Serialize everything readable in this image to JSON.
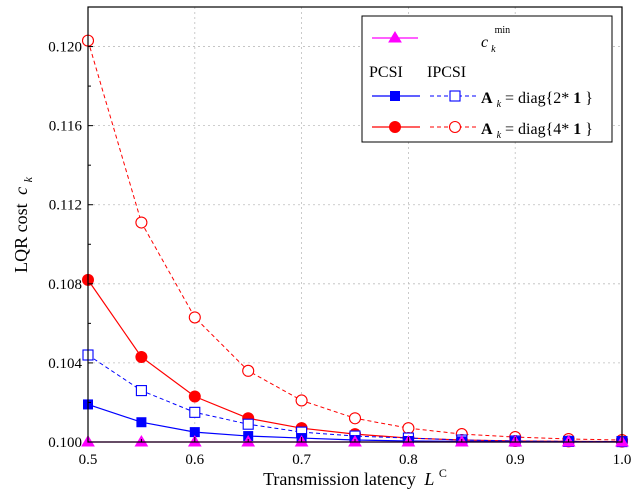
{
  "chart_data": {
    "type": "line",
    "title": "",
    "xlabel": "Transmission latency",
    "xlabel_symbol": "L",
    "xlabel_symbol_sup": "C",
    "ylabel": "LQR cost",
    "ylabel_symbol": "c",
    "ylabel_symbol_sub": "k",
    "xlim": [
      0.5,
      1.0
    ],
    "ylim": [
      0.1,
      0.122
    ],
    "x_ticks": [
      "0.5",
      "0.6",
      "0.7",
      "0.8",
      "0.9",
      "1.0"
    ],
    "y_ticks": [
      "0.100",
      "0.104",
      "0.108",
      "0.112",
      "0.116",
      "0.120"
    ],
    "grid": true,
    "legend_placement": "top-right",
    "legend": {
      "min_symbol": "c",
      "min_sub": "k",
      "min_sup": "min",
      "col_perfect": "PCSI",
      "col_imperfect": "IPCSI",
      "row1_A": "A",
      "row1_sub": "k",
      "row1_eq": " = diag{2*",
      "row1_one": "1",
      "row1_close": "}",
      "row2_A": "A",
      "row2_sub": "k",
      "row2_eq": " = diag{4*",
      "row2_one": "1",
      "row2_close": "}"
    },
    "x": [
      0.5,
      0.55,
      0.6,
      0.65,
      0.7,
      0.75,
      0.8,
      0.85,
      0.9,
      0.95,
      1.0
    ],
    "series": [
      {
        "key": "ipcsi_4",
        "color": "#ff0000",
        "marker": "circle-open",
        "dashed": true,
        "values": [
          0.1203,
          0.1111,
          0.1063,
          0.1036,
          0.1021,
          0.1012,
          0.1007,
          0.1004,
          0.10025,
          0.10015,
          0.1001
        ]
      },
      {
        "key": "pcsi_4",
        "color": "#ff0000",
        "marker": "circle-filled",
        "dashed": false,
        "values": [
          0.1082,
          0.1043,
          0.1023,
          0.1012,
          0.1007,
          0.1004,
          0.1002,
          0.1001,
          0.10005,
          0.10003,
          0.10002
        ]
      },
      {
        "key": "ipcsi_2",
        "color": "#0000ff",
        "marker": "square-open",
        "dashed": true,
        "values": [
          0.1044,
          0.1026,
          0.1015,
          0.1009,
          0.1005,
          0.1003,
          0.1002,
          0.1001,
          0.10005,
          0.10003,
          0.10002
        ]
      },
      {
        "key": "pcsi_2",
        "color": "#0000ff",
        "marker": "square-filled",
        "dashed": false,
        "values": [
          0.1019,
          0.101,
          0.1005,
          0.1003,
          0.1002,
          0.1001,
          0.10005,
          0.10003,
          0.10002,
          0.10001,
          0.10001
        ]
      },
      {
        "key": "cmin",
        "color": "#ff00ff",
        "marker": "triangle-filled",
        "dashed": false,
        "values": [
          0.1,
          0.1,
          0.1,
          0.1,
          0.1,
          0.1,
          0.1,
          0.1,
          0.1,
          0.1,
          0.1
        ]
      }
    ]
  }
}
